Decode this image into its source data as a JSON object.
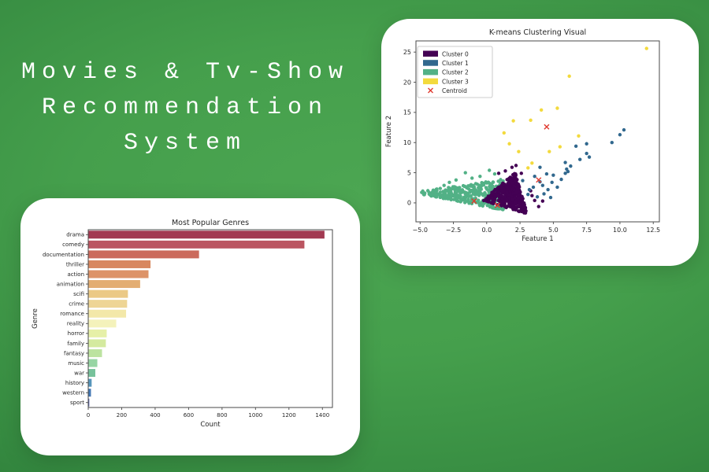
{
  "page": {
    "title_lines": [
      "Movies & Tv-Show",
      "Recommendation",
      "System"
    ]
  },
  "colors": {
    "background_center": "#4ca652",
    "background_edge": "#256e32",
    "card_background": "#ffffff",
    "title_text": "#ffffff",
    "chart_text": "#262626",
    "axis_spine": "#4a4a4a",
    "centroid_red": "#e03a2f"
  },
  "chart_data": [
    {
      "type": "bar",
      "orientation": "horizontal",
      "title": "Most Popular Genres",
      "xlabel": "Count",
      "ylabel": "Genre",
      "palette": "Spectral",
      "grid": false,
      "categories": [
        "drama",
        "comedy",
        "documentation",
        "thriller",
        "action",
        "animation",
        "scifi",
        "crime",
        "romance",
        "reality",
        "horror",
        "family",
        "fantasy",
        "music",
        "war",
        "history",
        "western",
        "sport"
      ],
      "values": [
        1410,
        1290,
        660,
        370,
        358,
        308,
        235,
        230,
        224,
        165,
        108,
        103,
        80,
        52,
        40,
        18,
        14,
        4
      ],
      "bar_colors": [
        "#a23a52",
        "#bb5561",
        "#cb6a5c",
        "#d8875f",
        "#dd9368",
        "#e3ad72",
        "#ebc985",
        "#eed595",
        "#f3e8a9",
        "#f4f2bb",
        "#e6f0a8",
        "#d4ea9f",
        "#bce3a0",
        "#97d5a4",
        "#77c29b",
        "#5695ba",
        "#4377b3",
        "#5762aa"
      ],
      "xlim": [
        0,
        1460
      ],
      "xtick_values": [
        0,
        200,
        400,
        600,
        800,
        1000,
        1200,
        1400
      ],
      "xtick_labels": [
        "0",
        "200",
        "400",
        "600",
        "800",
        "1000",
        "1200",
        "1400"
      ]
    },
    {
      "type": "scatter",
      "title": "K-means Clustering Visual",
      "xlabel": "Feature 1",
      "ylabel": "Feature 2",
      "grid": false,
      "xlim": [
        -5.31,
        12.96
      ],
      "ylim": [
        -3.14,
        26.85
      ],
      "xtick_values": [
        -5.0,
        -2.5,
        0.0,
        2.5,
        5.0,
        7.5,
        10.0,
        12.5
      ],
      "xtick_labels": [
        "−5.0",
        "−2.5",
        "0.0",
        "2.5",
        "5.0",
        "7.5",
        "10.0",
        "12.5"
      ],
      "ytick_values": [
        0,
        5,
        10,
        15,
        20,
        25
      ],
      "ytick_labels": [
        "0",
        "5",
        "10",
        "15",
        "20",
        "25"
      ],
      "legend": {
        "position": "upper left",
        "entries": [
          {
            "label": "Cluster 0",
            "color": "#440154",
            "marker": "patch"
          },
          {
            "label": "Cluster 1",
            "color": "#31688e",
            "marker": "patch"
          },
          {
            "label": "Cluster 2",
            "color": "#52b186",
            "marker": "patch"
          },
          {
            "label": "Cluster 3",
            "color": "#f3da3d",
            "marker": "patch"
          },
          {
            "label": "Centroid",
            "color": "#e03a2f",
            "marker": "x"
          }
        ]
      },
      "series": [
        {
          "name": "Cluster 0",
          "color": "#440154",
          "dense_z": 2,
          "dense_region": {
            "shape": "triangle",
            "count": 430,
            "vertices": [
              [
                -0.35,
                0.45
              ],
              [
                2.15,
                5.0
              ],
              [
                3.05,
                -1.85
              ]
            ]
          },
          "points": [
            [
              1.9,
              5.9
            ],
            [
              2.2,
              6.2
            ],
            [
              1.4,
              5.3
            ],
            [
              3.4,
              1.2
            ],
            [
              3.6,
              0.4
            ],
            [
              4.2,
              0.3
            ],
            [
              3.9,
              -0.6
            ],
            [
              3.3,
              2.0
            ],
            [
              2.6,
              4.9
            ],
            [
              0.9,
              4.9
            ]
          ]
        },
        {
          "name": "Cluster 1",
          "color": "#31688e",
          "points": [
            [
              10.3,
              12.1
            ],
            [
              10.0,
              11.3
            ],
            [
              9.4,
              10.0
            ],
            [
              7.5,
              9.8
            ],
            [
              6.7,
              9.4
            ],
            [
              7.5,
              8.2
            ],
            [
              7.7,
              7.6
            ],
            [
              7.0,
              7.2
            ],
            [
              5.9,
              6.7
            ],
            [
              6.3,
              6.1
            ],
            [
              6.1,
              5.2
            ],
            [
              5.9,
              4.9
            ],
            [
              5.6,
              3.9
            ],
            [
              5.3,
              2.6
            ],
            [
              4.9,
              3.4
            ],
            [
              5.0,
              4.6
            ],
            [
              4.5,
              4.8
            ],
            [
              4.0,
              5.9
            ],
            [
              4.0,
              3.5
            ],
            [
              3.6,
              4.4
            ],
            [
              3.5,
              2.6
            ],
            [
              3.2,
              2.2
            ],
            [
              3.1,
              1.4
            ],
            [
              2.7,
              3.7
            ],
            [
              4.3,
              1.5
            ],
            [
              3.8,
              1.0
            ],
            [
              4.6,
              2.2
            ],
            [
              4.8,
              0.9
            ],
            [
              6.0,
              5.6
            ],
            [
              4.2,
              2.9
            ]
          ]
        },
        {
          "name": "Cluster 2",
          "color": "#52b186",
          "dense_z": 1,
          "dense_region": {
            "shape": "fan",
            "count": 340,
            "x_start": -4.9,
            "x_span": 6.2,
            "x_pow": 0.75,
            "bottom_start": 1.45,
            "bottom_slope": -0.4276,
            "height_base": 0.5,
            "height_slope": 0.75,
            "y_pow": 1.6
          },
          "points": [
            [
              -1.6,
              5.0
            ],
            [
              0.2,
              5.4
            ],
            [
              -0.5,
              4.4
            ],
            [
              -2.3,
              3.8
            ],
            [
              -3.2,
              2.9
            ],
            [
              0.6,
              4.8
            ],
            [
              -1.1,
              4.1
            ],
            [
              -2.8,
              3.4
            ]
          ]
        },
        {
          "name": "Cluster 3",
          "color": "#f3da3d",
          "points": [
            [
              12.0,
              25.6
            ],
            [
              6.2,
              21.0
            ],
            [
              5.3,
              15.7
            ],
            [
              4.1,
              15.4
            ],
            [
              3.3,
              13.7
            ],
            [
              2.0,
              13.6
            ],
            [
              1.3,
              11.6
            ],
            [
              6.9,
              11.1
            ],
            [
              1.7,
              9.8
            ],
            [
              5.5,
              9.3
            ],
            [
              4.7,
              8.5
            ],
            [
              2.4,
              8.5
            ],
            [
              3.4,
              6.6
            ],
            [
              3.1,
              5.8
            ]
          ]
        }
      ],
      "centroids": {
        "label": "Centroid",
        "color": "#e03a2f",
        "marker": "x",
        "points": [
          [
            -0.95,
            0.3
          ],
          [
            0.8,
            -0.4
          ],
          [
            3.9,
            3.8
          ],
          [
            4.5,
            12.6
          ]
        ]
      }
    }
  ]
}
